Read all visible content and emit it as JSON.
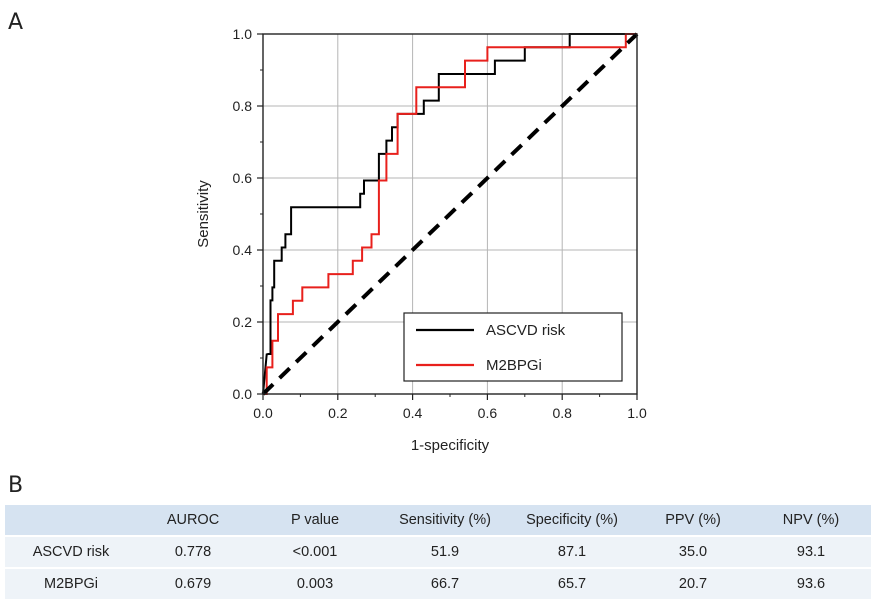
{
  "panels": {
    "a": "A",
    "b": "B"
  },
  "chart_data": {
    "type": "line",
    "xlabel": "1-specificity",
    "ylabel": "Sensitivity",
    "xlim": [
      0,
      1
    ],
    "ylim": [
      0,
      1
    ],
    "grid": true,
    "legend_position": "bottom-right",
    "xticks": [
      "0.0",
      "0.2",
      "0.4",
      "0.6",
      "0.8",
      "1.0"
    ],
    "yticks": [
      "0.0",
      "0.2",
      "0.4",
      "0.6",
      "0.8",
      "1.0"
    ],
    "series": [
      {
        "name": "ASCVD risk",
        "color": "#000000",
        "style": "step",
        "x": [
          0,
          0.01,
          0.014,
          0.02,
          0.02,
          0.025,
          0.025,
          0.03,
          0.03,
          0.04,
          0.04,
          0.05,
          0.05,
          0.06,
          0.06,
          0.075,
          0.075,
          0.22,
          0.22,
          0.26,
          0.26,
          0.27,
          0.27,
          0.29,
          0.29,
          0.31,
          0.31,
          0.33,
          0.33,
          0.345,
          0.345,
          0.36,
          0.36,
          0.38,
          0.38,
          0.43,
          0.43,
          0.47,
          0.47,
          0.55,
          0.55,
          0.62,
          0.62,
          0.7,
          0.7,
          0.78,
          0.78,
          0.82,
          0.82,
          1.0
        ],
        "y": [
          0,
          0.11,
          0.111,
          0.111,
          0.26,
          0.26,
          0.296,
          0.296,
          0.37,
          0.37,
          0.37,
          0.37,
          0.407,
          0.407,
          0.444,
          0.444,
          0.519,
          0.519,
          0.519,
          0.519,
          0.556,
          0.556,
          0.593,
          0.593,
          0.593,
          0.593,
          0.667,
          0.667,
          0.704,
          0.704,
          0.741,
          0.741,
          0.778,
          0.778,
          0.778,
          0.778,
          0.815,
          0.815,
          0.889,
          0.889,
          0.889,
          0.889,
          0.926,
          0.926,
          0.963,
          0.963,
          0.963,
          0.963,
          1.0,
          1.0
        ]
      },
      {
        "name": "M2BPGi",
        "color": "#e8201c",
        "style": "step",
        "x": [
          0,
          0.01,
          0.01,
          0.025,
          0.025,
          0.04,
          0.04,
          0.08,
          0.08,
          0.105,
          0.105,
          0.14,
          0.14,
          0.175,
          0.175,
          0.24,
          0.24,
          0.265,
          0.265,
          0.29,
          0.29,
          0.31,
          0.31,
          0.33,
          0.33,
          0.36,
          0.36,
          0.41,
          0.41,
          0.54,
          0.54,
          0.6,
          0.6,
          0.75,
          0.75,
          0.97,
          0.97,
          1.0
        ],
        "y": [
          0,
          0,
          0.074,
          0.074,
          0.148,
          0.148,
          0.222,
          0.222,
          0.259,
          0.259,
          0.296,
          0.296,
          0.296,
          0.296,
          0.333,
          0.333,
          0.37,
          0.37,
          0.407,
          0.407,
          0.444,
          0.444,
          0.593,
          0.593,
          0.667,
          0.667,
          0.778,
          0.778,
          0.852,
          0.852,
          0.926,
          0.926,
          0.963,
          0.963,
          0.963,
          0.963,
          1.0,
          1.0
        ]
      },
      {
        "name": "",
        "color": "#000000",
        "style": "dashed-diagonal",
        "x": [
          0,
          1
        ],
        "y": [
          0,
          1
        ]
      }
    ]
  },
  "table": {
    "headers": [
      "",
      "AUROC",
      "P value",
      "Sensitivity (%)",
      "Specificity (%)",
      "PPV (%)",
      "NPV (%)"
    ],
    "rows": [
      [
        "ASCVD risk",
        "0.778",
        "<0.001",
        "51.9",
        "87.1",
        "35.0",
        "93.1"
      ],
      [
        "M2BPGi",
        "0.679",
        "0.003",
        "66.7",
        "65.7",
        "20.7",
        "93.6"
      ]
    ]
  }
}
